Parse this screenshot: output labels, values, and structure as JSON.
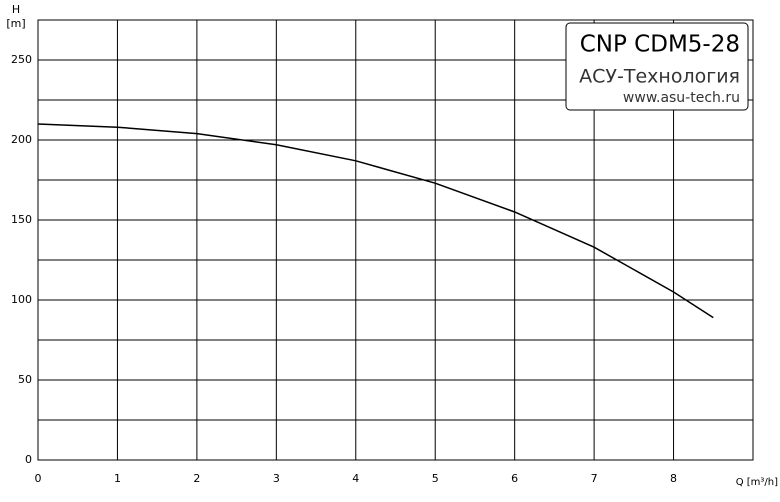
{
  "chart_data": {
    "type": "line",
    "title": "CNP CDM5-28",
    "subtitle": "АСУ-Технология",
    "website": "www.asu-tech.ru",
    "y_label": "H",
    "y_unit": "[m]",
    "x_label": "Q [m³/h]",
    "x": [
      0,
      1,
      2,
      3,
      4,
      5,
      6,
      7,
      8,
      8.5
    ],
    "series": [
      {
        "name": "H",
        "color": "#000000",
        "values": [
          210,
          208,
          204,
          197,
          187,
          173,
          155,
          133,
          105,
          89
        ]
      }
    ],
    "xlim": [
      0,
      9
    ],
    "xticks": [
      0,
      1,
      2,
      3,
      4,
      5,
      6,
      7,
      8
    ],
    "ylim": [
      0,
      275
    ],
    "yticks": [
      0,
      50,
      100,
      150,
      200,
      250
    ],
    "y_minor_grid": [
      25,
      75,
      125,
      175,
      225
    ],
    "grid": true
  }
}
